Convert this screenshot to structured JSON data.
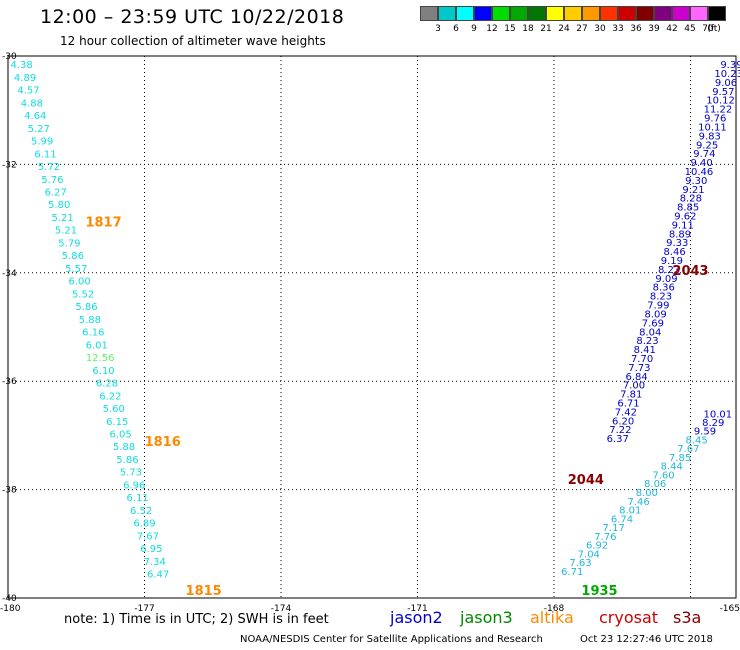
{
  "header": {
    "title": "12:00 – 23:59 UTC 10/22/2018",
    "subtitle": "12 hour collection of altimeter wave heights"
  },
  "color_scale": {
    "unit": "(ft)",
    "bins": [
      {
        "color": "#808080",
        "label": "3"
      },
      {
        "color": "#00c8c8",
        "label": "6"
      },
      {
        "color": "#00ffff",
        "label": "9"
      },
      {
        "color": "#0000ff",
        "label": "12"
      },
      {
        "color": "#00dd00",
        "label": "15"
      },
      {
        "color": "#00aa00",
        "label": "18"
      },
      {
        "color": "#007700",
        "label": "21"
      },
      {
        "color": "#ffff00",
        "label": "24"
      },
      {
        "color": "#ffcc00",
        "label": "27"
      },
      {
        "color": "#ff9900",
        "label": "30"
      },
      {
        "color": "#ff3300",
        "label": "33"
      },
      {
        "color": "#cc0000",
        "label": "36"
      },
      {
        "color": "#800000",
        "label": "39"
      },
      {
        "color": "#800080",
        "label": "42"
      },
      {
        "color": "#cc00cc",
        "label": "45"
      },
      {
        "color": "#ff66ff",
        "label": "70"
      },
      {
        "color": "#000000",
        "label": ""
      }
    ]
  },
  "footer": {
    "note": "note:  1) Time is in UTC;  2) SWH is in feet",
    "satellites": [
      {
        "name": "jason2",
        "color": "#0000cc"
      },
      {
        "name": "jason3",
        "color": "#008800"
      },
      {
        "name": "altika",
        "color": "#ff8800"
      },
      {
        "name": "cryosat",
        "color": "#cc0000"
      },
      {
        "name": "s3a",
        "color": "#800000"
      }
    ],
    "credit": "NOAA/NESDIS Center for Satellite Applications and Research",
    "generated": "Oct 23 12:27:46 UTC 2018"
  },
  "chart_data": {
    "type": "scatter",
    "title": "12 hour collection of altimeter wave heights",
    "xlim": [
      -180,
      -164
    ],
    "ylim": [
      -40,
      -30
    ],
    "x_ticks": [
      "-180",
      "-177",
      "-174",
      "-171",
      "-168",
      "-165"
    ],
    "y_ticks": [
      "-30",
      "-32",
      "-34",
      "-36",
      "-38",
      "-40"
    ],
    "grid": true,
    "colors": {
      "cyan": "#11dddd",
      "teal": "#22b8d8",
      "blue": "#0000cc",
      "green": "#00aa00",
      "lime": "#66ee66",
      "orange": "#ff8800",
      "maroon": "#880000"
    },
    "tracks": [
      {
        "name": "pass-1817",
        "color": "cyan",
        "start": [
          -179.7,
          -30.15
        ],
        "end": [
          -176.7,
          -39.55
        ],
        "values": [
          "4.38",
          "4.89",
          "4.57",
          "4.88",
          "4.64",
          "5.27",
          "5.99",
          "6.11",
          "5.72",
          "5.76",
          "6.27",
          "5.80",
          "5.21",
          "5.21",
          "5.79",
          "5.86",
          "5.57",
          "6.00",
          "5.52",
          "5.86",
          "5.88",
          "6.16",
          "6.01",
          "12.56",
          "6.10",
          "6.28",
          "6.22",
          "5.60",
          "6.15",
          "6.05",
          "5.88",
          "5.86",
          "5.73",
          "6.96",
          "6.11",
          "6.52",
          "6.89",
          "7.67",
          "6.95",
          "7.34",
          "6.47"
        ],
        "highlight": [
          23,
          "lime"
        ]
      },
      {
        "name": "jason2-2043",
        "color": "blue",
        "start": [
          -164.1,
          -30.15
        ],
        "end": [
          -166.6,
          -37.05
        ],
        "values": [
          "9.39",
          "10.23",
          "9.06",
          "9.57",
          "10.12",
          "11.22",
          "9.76",
          "10.11",
          "9.83",
          "9.25",
          "9.74",
          "9.40",
          "10.46",
          "9.30",
          "9.21",
          "8.28",
          "8.85",
          "9.62",
          "9.11",
          "8.89",
          "9.33",
          "8.46",
          "9.19",
          "8.23",
          "9.09",
          "8.36",
          "8.23",
          "7.99",
          "8.09",
          "7.69",
          "8.04",
          "8.23",
          "8.41",
          "7.70",
          "7.73",
          "6.84",
          "7.00",
          "7.81",
          "6.71",
          "7.42",
          "6.20",
          "7.22",
          "6.37"
        ],
        "mix": {
          "blue": [
            0,
            1,
            2,
            3,
            4,
            5,
            6,
            7,
            8,
            9,
            10,
            11,
            12,
            13,
            14,
            17,
            18,
            20,
            22,
            24
          ]
        }
      },
      {
        "name": "pass-1935",
        "color": "teal",
        "start": [
          -164.5,
          -36.75
        ],
        "end": [
          -167.6,
          -39.5
        ],
        "values": [
          "8.29",
          "9.59",
          "8.45",
          "7.67",
          "7.85",
          "8.44",
          "7.60",
          "8.06",
          "8.00",
          "7.46",
          "8.01",
          "6.74",
          "7.17",
          "7.76",
          "6.92",
          "7.04",
          "7.63",
          "6.71"
        ],
        "mix": {
          "blue": [
            0,
            1
          ]
        }
      }
    ],
    "markers": [
      {
        "label": "1817",
        "color": "orange",
        "x": -177.9,
        "y": -33.05
      },
      {
        "label": "1816",
        "color": "orange",
        "x": -176.6,
        "y": -37.1
      },
      {
        "label": "1815",
        "color": "orange",
        "x": -175.7,
        "y": -39.85
      },
      {
        "label": "2043",
        "color": "maroon",
        "x": -165.0,
        "y": -33.95
      },
      {
        "label": "2044",
        "color": "maroon",
        "x": -167.3,
        "y": -37.8
      },
      {
        "label": "1935",
        "color": "green",
        "x": -167.0,
        "y": -39.85
      }
    ],
    "extra_points": [
      {
        "label": "10.01",
        "color": "blue",
        "x": -164.4,
        "y": -36.6
      }
    ]
  }
}
